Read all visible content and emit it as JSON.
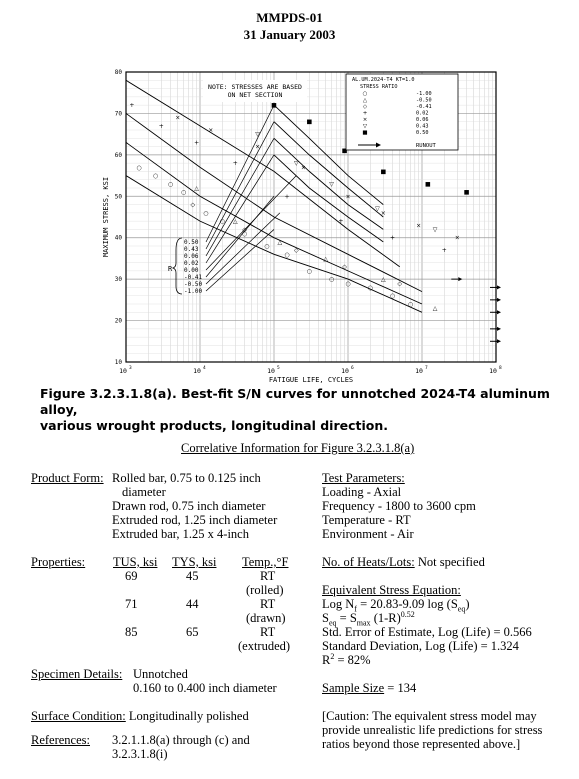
{
  "header": {
    "doc": "MMPDS-01",
    "date": "31 January 2003"
  },
  "caption": {
    "line1": "Figure 3.2.3.1.8(a).  Best-fit S/N curves for unnotched 2024-T4 aluminum alloy,",
    "line2": "various wrought products, longitudinal direction."
  },
  "chart_data": {
    "type": "scatter",
    "xlabel": "FATIGUE LIFE, CYCLES",
    "ylabel": "MAXIMUM STRESS, KSI",
    "xscale": "log",
    "xlim": [
      1000,
      100000000
    ],
    "ylim": [
      10,
      80
    ],
    "x_ticks": [
      "10",
      "10",
      "10",
      "10",
      "10",
      "10"
    ],
    "x_tick_exp": [
      "3",
      "4",
      "5",
      "6",
      "7",
      "8"
    ],
    "y_ticks": [
      10,
      20,
      30,
      40,
      50,
      60,
      70,
      80
    ],
    "note": [
      "NOTE: STRESSES ARE BASED",
      "ON NET SECTION"
    ],
    "legend": {
      "title1": "AL.UM.2024-T4 KT=1.0",
      "title2": "STRESS RATIO",
      "entries": [
        {
          "symbol": "○",
          "label": "-1.00"
        },
        {
          "symbol": "△",
          "label": "-0.50"
        },
        {
          "symbol": "◇",
          "label": "-0.41"
        },
        {
          "symbol": "+",
          "label": "0.02"
        },
        {
          "symbol": "×",
          "label": "0.06"
        },
        {
          "symbol": "▽",
          "label": "0.43"
        },
        {
          "symbol": "■",
          "label": "0.50"
        }
      ],
      "runout": "RUNOUT"
    },
    "r_label": "R",
    "r_values": [
      "0.50",
      "0.43",
      "0.06",
      "0.02",
      "0.00",
      "-0.41",
      "-0.50",
      "-1.00"
    ],
    "curves": [
      {
        "x": [
          1000,
          10000,
          100000,
          1000000,
          5000000
        ],
        "y": [
          78,
          67,
          56,
          42,
          33
        ]
      },
      {
        "x": [
          1000,
          10000,
          100000,
          1000000,
          10000000
        ],
        "y": [
          70,
          57,
          45,
          36,
          27
        ]
      },
      {
        "x": [
          1000,
          10000,
          100000,
          1000000,
          10000000
        ],
        "y": [
          63,
          50,
          40,
          32,
          24
        ]
      },
      {
        "x": [
          1000,
          10000,
          100000,
          1000000,
          10000000
        ],
        "y": [
          55,
          44,
          36,
          30,
          22
        ]
      },
      {
        "x": [
          100000,
          300000,
          1000000,
          3000000
        ],
        "y": [
          72,
          64,
          55,
          48
        ]
      },
      {
        "x": [
          100000,
          300000,
          1000000,
          3000000
        ],
        "y": [
          68,
          60,
          52,
          45
        ]
      },
      {
        "x": [
          100000,
          300000,
          1000000,
          3000000
        ],
        "y": [
          64,
          56,
          48,
          42
        ]
      },
      {
        "x": [
          100000,
          300000,
          1000000,
          3000000
        ],
        "y": [
          60,
          52,
          45,
          39
        ]
      }
    ],
    "points": [
      {
        "s": "○",
        "x": 1500,
        "y": 57
      },
      {
        "s": "○",
        "x": 2500,
        "y": 55
      },
      {
        "s": "○",
        "x": 4000,
        "y": 53
      },
      {
        "s": "○",
        "x": 6000,
        "y": 51
      },
      {
        "s": "○",
        "x": 12000,
        "y": 46
      },
      {
        "s": "○",
        "x": 20000,
        "y": 44
      },
      {
        "s": "○",
        "x": 40000,
        "y": 41
      },
      {
        "s": "○",
        "x": 80000,
        "y": 38
      },
      {
        "s": "○",
        "x": 150000,
        "y": 36
      },
      {
        "s": "○",
        "x": 300000,
        "y": 32
      },
      {
        "s": "○",
        "x": 600000,
        "y": 30
      },
      {
        "s": "○",
        "x": 1000000,
        "y": 29
      },
      {
        "s": "○",
        "x": 2000000,
        "y": 28
      },
      {
        "s": "○",
        "x": 4000000,
        "y": 26
      },
      {
        "s": "○",
        "x": 7000000,
        "y": 24
      },
      {
        "s": "△",
        "x": 9000,
        "y": 52
      },
      {
        "s": "△",
        "x": 30000,
        "y": 44
      },
      {
        "s": "△",
        "x": 120000,
        "y": 39
      },
      {
        "s": "△",
        "x": 500000,
        "y": 35
      },
      {
        "s": "△",
        "x": 3000000,
        "y": 30
      },
      {
        "s": "△",
        "x": 15000000,
        "y": 23
      },
      {
        "s": "◇",
        "x": 8000,
        "y": 48
      },
      {
        "s": "◇",
        "x": 40000,
        "y": 42
      },
      {
        "s": "◇",
        "x": 200000,
        "y": 37
      },
      {
        "s": "◇",
        "x": 900000,
        "y": 33
      },
      {
        "s": "◇",
        "x": 5000000,
        "y": 29
      },
      {
        "s": "+",
        "x": 1200,
        "y": 72
      },
      {
        "s": "+",
        "x": 3000,
        "y": 67
      },
      {
        "s": "+",
        "x": 9000,
        "y": 63
      },
      {
        "s": "+",
        "x": 30000,
        "y": 58
      },
      {
        "s": "+",
        "x": 150000,
        "y": 50
      },
      {
        "s": "+",
        "x": 800000,
        "y": 44
      },
      {
        "s": "+",
        "x": 4000000,
        "y": 40
      },
      {
        "s": "+",
        "x": 20000000,
        "y": 37
      },
      {
        "s": "×",
        "x": 5000,
        "y": 69
      },
      {
        "s": "×",
        "x": 14000,
        "y": 66
      },
      {
        "s": "×",
        "x": 60000,
        "y": 62
      },
      {
        "s": "×",
        "x": 250000,
        "y": 57
      },
      {
        "s": "×",
        "x": 1000000,
        "y": 50
      },
      {
        "s": "×",
        "x": 3000000,
        "y": 46
      },
      {
        "s": "×",
        "x": 9000000,
        "y": 43
      },
      {
        "s": "×",
        "x": 30000000,
        "y": 40
      },
      {
        "s": "▽",
        "x": 60000,
        "y": 65
      },
      {
        "s": "▽",
        "x": 200000,
        "y": 58
      },
      {
        "s": "▽",
        "x": 600000,
        "y": 53
      },
      {
        "s": "▽",
        "x": 2500000,
        "y": 47
      },
      {
        "s": "▽",
        "x": 15000000,
        "y": 42
      },
      {
        "s": "■",
        "x": 100000,
        "y": 72
      },
      {
        "s": "■",
        "x": 300000,
        "y": 68
      },
      {
        "s": "■",
        "x": 900000,
        "y": 61
      },
      {
        "s": "■",
        "x": 3000000,
        "y": 56
      },
      {
        "s": "■",
        "x": 12000000,
        "y": 53
      },
      {
        "s": "■",
        "x": 40000000,
        "y": 51
      }
    ],
    "runouts": [
      {
        "x": 100000000,
        "y": 28
      },
      {
        "x": 100000000,
        "y": 25
      },
      {
        "x": 100000000,
        "y": 22
      },
      {
        "x": 100000000,
        "y": 18
      },
      {
        "x": 100000000,
        "y": 15
      },
      {
        "x": 30000000,
        "y": 30
      }
    ]
  },
  "correlative": {
    "title": "Correlative Information for Figure 3.2.3.1.8(a)",
    "product_form_label": "Product Form:",
    "product_form": [
      "Rolled bar, 0.75 to 0.125 inch",
      "diameter",
      "Drawn rod, 0.75 inch diameter",
      "Extruded rod, 1.25 inch diameter",
      "Extruded bar, 1.25 x 4-inch"
    ],
    "test_params_label": "Test Parameters:",
    "test_params": [
      "Loading - Axial",
      "Frequency - 1800 to 3600 cpm",
      "Temperature - RT",
      "Environment - Air"
    ],
    "properties_label": "Properties:",
    "prop_headers": {
      "tus": "TUS, ksi",
      "tys": "TYS, ksi",
      "temp": "Temp.,°F"
    },
    "prop_rows": [
      {
        "tus": "69",
        "tys": "45",
        "temp1": "RT",
        "temp2": "(rolled)"
      },
      {
        "tus": "71",
        "tys": "44",
        "temp1": "RT",
        "temp2": "(drawn)"
      },
      {
        "tus": "85",
        "tys": "65",
        "temp1": "RT",
        "temp2": "(extruded)"
      }
    ],
    "heats_label": "No. of Heats/Lots:",
    "heats_value": "Not specified",
    "equiv_label": "Equivalent Stress Equation:",
    "equiv_log_a": "Log N",
    "equiv_log_sub": "f",
    "equiv_log_b": " = 20.83-9.09 log (S",
    "equiv_log_sub2": "eq",
    "equiv_log_c": ")",
    "equiv_s_a": "S",
    "equiv_s_sub": "eq",
    "equiv_s_b": " = S",
    "equiv_s_sub2": "max",
    "equiv_s_c": " (1-R)",
    "equiv_s_sup": "0.52",
    "std_error": "Std. Error of Estimate, Log (Life) = 0.566",
    "std_dev": "Standard Deviation, Log (Life) = 1.324",
    "r2_a": "R",
    "r2_sup": "2",
    "r2_b": " = 82%",
    "specimen_label": "Specimen Details:",
    "specimen": [
      "Unnotched",
      "0.160 to 0.400 inch diameter"
    ],
    "sample_label": "Sample Size",
    "sample_value": " = 134",
    "surface_label": "Surface Condition:",
    "surface_value": "Longitudinally polished",
    "caution": [
      "[Caution:  The equivalent stress model may",
      "provide unrealistic life predictions for stress",
      "ratios beyond those represented above.]"
    ],
    "references_label": "References:",
    "references": [
      "3.2.1.1.8(a) through (c) and",
      "3.2.3.1.8(i)"
    ]
  }
}
